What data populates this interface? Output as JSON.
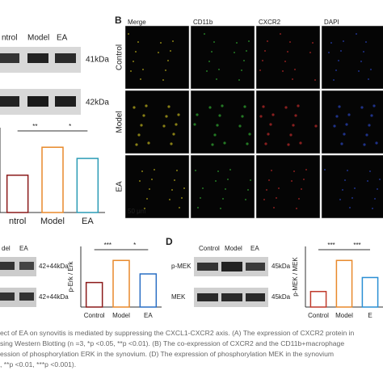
{
  "panel_a": {
    "lanes": [
      "ntrol",
      "Model",
      "EA"
    ],
    "blot_sizes": [
      "41kDa",
      "42kDa"
    ],
    "chart": {
      "type": "bar",
      "categories": [
        "ntrol",
        "Model",
        "EA"
      ],
      "values": [
        1.0,
        1.75,
        1.45
      ],
      "colors": [
        "#8b1a1a",
        "#e8892b",
        "#2a9bb5"
      ],
      "significance": [
        "**",
        "*"
      ]
    }
  },
  "panel_b": {
    "label": "B",
    "columns": [
      "Merge",
      "CD11b",
      "CXCR2",
      "DAPI"
    ],
    "column_colors": [
      "#e0d020",
      "#39c639",
      "#e03030",
      "#3050e0"
    ],
    "rows": [
      "Control",
      "Model",
      "EA"
    ],
    "scale_bar": "50 μm"
  },
  "panel_c": {
    "lanes": [
      "del",
      "EA"
    ],
    "blot_sizes": [
      "42+44kDa",
      "42+44kDa"
    ],
    "chart": {
      "type": "bar",
      "y_label": "p-Erk / Erk",
      "categories": [
        "Control",
        "Model",
        "EA"
      ],
      "values": [
        1.0,
        1.9,
        1.35
      ],
      "colors": [
        "#8b1a1a",
        "#e8892b",
        "#2a6fc4"
      ],
      "significance": [
        "***",
        "*"
      ]
    }
  },
  "panel_d": {
    "label": "D",
    "lanes": [
      "Control",
      "Model",
      "EA"
    ],
    "blot_rows": [
      "p-MEK",
      "MEK"
    ],
    "blot_sizes": [
      "45kDa",
      "45kDa"
    ],
    "chart": {
      "type": "bar",
      "y_label": "p-MEK / MEK",
      "categories": [
        "Control",
        "Model",
        "E"
      ],
      "values": [
        1.0,
        3.0,
        1.9
      ],
      "colors": [
        "#c0392b",
        "#e8892b",
        "#2a8fd4"
      ],
      "significance": [
        "***",
        "***"
      ]
    }
  },
  "caption": [
    "ect of EA on synovitis is mediated by suppressing the CXCL1-CXCR2 axis. (A) The expression of CXCR2 protein in",
    "sing Western Blotting (n =3, *p <0.05, **p <0.01). (B) The co-expression of CXCR2 and the CD11b+macrophage",
    "ession of phosphorylation ERK in the synovium. (D) The expression of phosphorylation MEK in the synovium",
    ", **p <0.01, ***p <0.001)."
  ]
}
